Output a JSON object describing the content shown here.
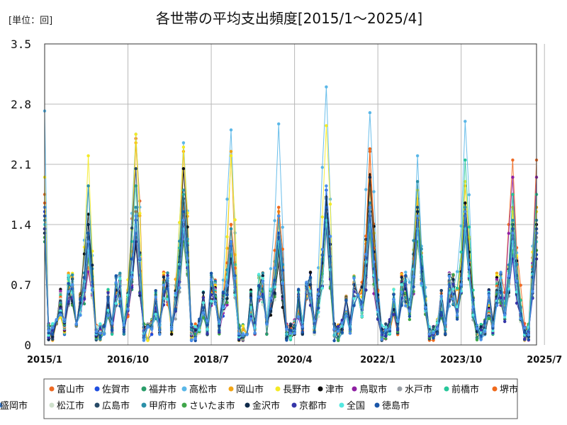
{
  "chart_data": {
    "type": "line",
    "title": "各世帯の平均支出頻度[2015/1～2025/4]",
    "unit_label": "[単位：回]",
    "ylim": [
      0,
      3.5
    ],
    "y_ticks": [
      "0",
      "0.7",
      "1.4",
      "2.1",
      "2.8",
      "3.5"
    ],
    "x_ticks": [
      "2015/1",
      "2016/10",
      "2018/7",
      "2020/4",
      "2022/1",
      "2023/10",
      "2025/7"
    ],
    "x_start": "2015/1",
    "x_end": "2025/7",
    "months_count": 124,
    "peak_months": [
      0,
      11,
      23,
      35,
      47,
      59,
      71,
      82,
      94,
      106,
      118,
      124
    ],
    "legend_position": "bottom",
    "series": [
      {
        "name": "富山市",
        "color": "#ee6a24",
        "peaks": [
          1.75,
          0.9,
          2.4,
          1.65,
          1.4,
          1.55,
          1.6,
          2.25,
          1.7,
          1.5,
          2.15
        ]
      },
      {
        "name": "佐賀市",
        "color": "#1f4fe0",
        "peaks": [
          1.55,
          1.2,
          1.45,
          1.35,
          1.1,
          1.5,
          1.8,
          1.6,
          1.55,
          1.65,
          1.05
        ]
      },
      {
        "name": "福井市",
        "color": "#2a9d6a",
        "peaks": [
          1.2,
          1.0,
          1.2,
          1.3,
          1.05,
          1.1,
          1.5,
          1.4,
          1.2,
          1.25,
          1.3
        ]
      },
      {
        "name": "高松市",
        "color": "#5ab7e8",
        "peaks": [
          2.72,
          1.85,
          2.45,
          2.35,
          2.5,
          2.57,
          3.0,
          2.7,
          2.2,
          2.6,
          1.75
        ]
      },
      {
        "name": "岡山市",
        "color": "#f2a516",
        "peaks": [
          1.6,
          1.05,
          2.35,
          2.25,
          2.25,
          1.55,
          1.5,
          1.8,
          1.7,
          1.85,
          1.6
        ]
      },
      {
        "name": "長野市",
        "color": "#f4ea25",
        "peaks": [
          1.95,
          2.2,
          2.45,
          2.3,
          2.2,
          1.4,
          2.55,
          1.9,
          1.8,
          1.9,
          1.55
        ]
      },
      {
        "name": "津市",
        "color": "#111111",
        "peaks": [
          1.35,
          1.52,
          1.15,
          2.05,
          1.0,
          0.95,
          1.72,
          1.98,
          1.55,
          1.65,
          1.4
        ]
      },
      {
        "name": "鳥取市",
        "color": "#8e1fa2",
        "peaks": [
          1.5,
          0.85,
          1.45,
          1.25,
          1.0,
          1.05,
          1.4,
          1.3,
          1.2,
          1.5,
          1.95
        ]
      },
      {
        "name": "水戸市",
        "color": "#9aa0a6",
        "peaks": [
          1.3,
          1.05,
          1.35,
          1.2,
          1.1,
          1.0,
          1.55,
          1.45,
          1.3,
          1.4,
          1.25
        ]
      },
      {
        "name": "前橋市",
        "color": "#27c79a",
        "peaks": [
          1.4,
          1.3,
          1.85,
          1.75,
          1.35,
          1.45,
          1.6,
          1.65,
          1.55,
          2.15,
          1.75
        ]
      },
      {
        "name": "堺市",
        "color": "#f06a1c",
        "peaks": [
          1.65,
          1.1,
          1.55,
          1.4,
          1.4,
          1.6,
          1.6,
          2.28,
          1.45,
          1.5,
          1.35
        ]
      },
      {
        "name": "松江市",
        "color": "#cfe0cc",
        "peaks": [
          1.3,
          1.0,
          1.3,
          1.25,
          1.1,
          1.15,
          1.4,
          1.35,
          1.25,
          1.3,
          1.2
        ]
      },
      {
        "name": "広島市",
        "color": "#274a66",
        "peaks": [
          1.35,
          1.25,
          2.05,
          1.7,
          1.2,
          1.25,
          1.45,
          1.55,
          1.6,
          1.45,
          1.3
        ]
      },
      {
        "name": "甲府市",
        "color": "#2b90a8",
        "peaks": [
          1.45,
          1.85,
          1.6,
          1.8,
          1.35,
          1.5,
          1.5,
          1.65,
          1.9,
          1.6,
          1.45
        ]
      },
      {
        "name": "さいたま市",
        "color": "#3fa64a",
        "peaks": [
          1.25,
          1.0,
          1.25,
          1.2,
          1.05,
          1.1,
          1.35,
          1.3,
          1.2,
          1.25,
          1.1
        ]
      },
      {
        "name": "金沢市",
        "color": "#0f2a4a",
        "peaks": [
          1.3,
          1.4,
          1.2,
          1.4,
          1.0,
          1.15,
          1.7,
          1.95,
          1.55,
          1.55,
          1.3
        ]
      },
      {
        "name": "京都市",
        "color": "#3535a8",
        "peaks": [
          1.35,
          1.1,
          1.3,
          1.3,
          1.2,
          1.3,
          1.35,
          1.4,
          1.35,
          1.3,
          1.0
        ]
      },
      {
        "name": "全国",
        "color": "#54e8e0",
        "peaks": [
          1.4,
          1.1,
          1.4,
          1.35,
          1.15,
          1.2,
          1.45,
          1.4,
          1.35,
          1.35,
          1.2
        ]
      },
      {
        "name": "徳島市",
        "color": "#1a56a8",
        "peaks": [
          1.5,
          1.3,
          1.45,
          1.55,
          1.15,
          1.3,
          1.6,
          1.5,
          1.45,
          1.5,
          1.35
        ]
      },
      {
        "name": "盛岡市",
        "color": "#4a90e8",
        "peaks": [
          1.6,
          1.2,
          1.5,
          1.45,
          1.2,
          1.5,
          1.85,
          1.6,
          1.5,
          1.55,
          1.3
        ]
      }
    ]
  }
}
